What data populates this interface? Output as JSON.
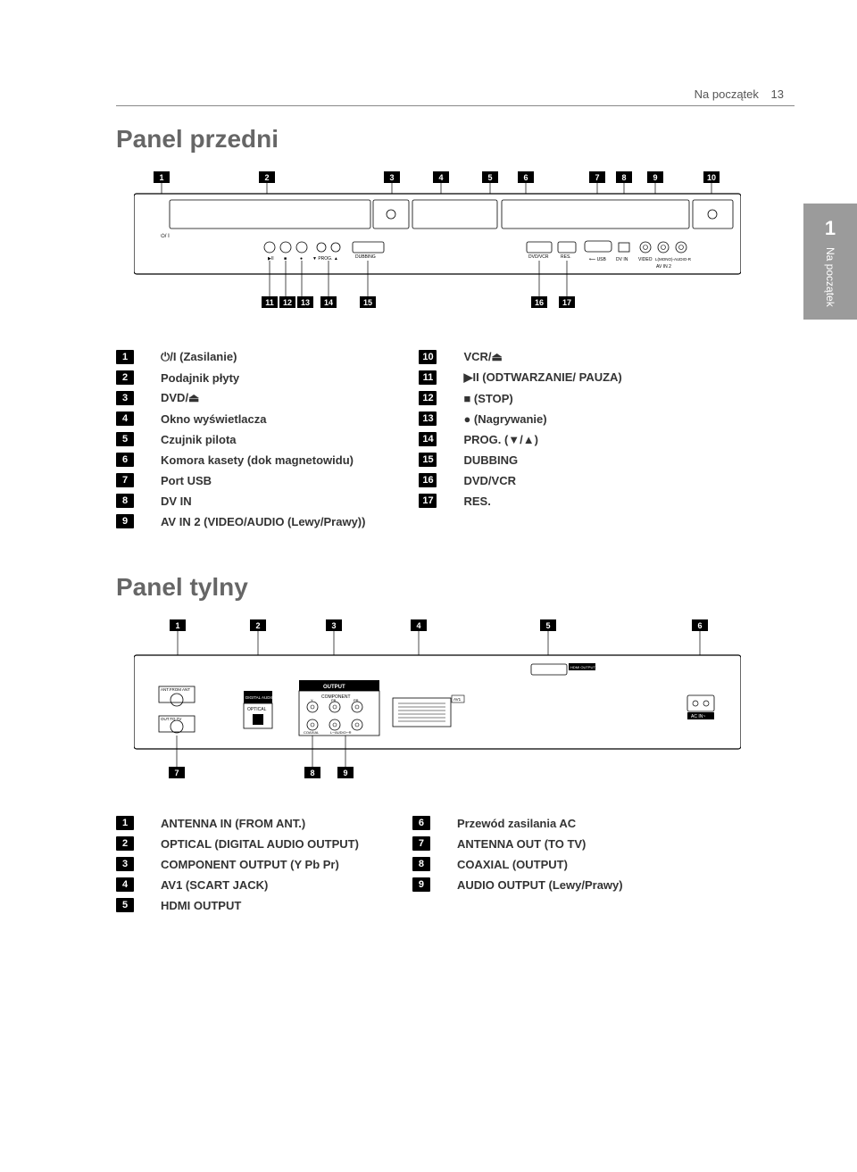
{
  "header": {
    "section_label": "Na początek",
    "page_number": "13"
  },
  "side_tab": {
    "number": "1",
    "label": "Na początek"
  },
  "front": {
    "title": "Panel przedni",
    "top_markers": [
      "1",
      "2",
      "3",
      "4",
      "5",
      "6",
      "7",
      "8",
      "9",
      "10"
    ],
    "bottom_markers": [
      "11",
      "12",
      "13",
      "14",
      "15",
      "16",
      "17"
    ],
    "legend_left": [
      {
        "n": "1",
        "t": "⏻/I (Zasilanie)"
      },
      {
        "n": "2",
        "t": "Podajnik płyty"
      },
      {
        "n": "3",
        "t": "DVD/⏏"
      },
      {
        "n": "4",
        "t": "Okno wyświetlacza"
      },
      {
        "n": "5",
        "t": "Czujnik pilota"
      },
      {
        "n": "6",
        "t": "Komora kasety (dok magnetowidu)"
      },
      {
        "n": "7",
        "t": "Port USB"
      },
      {
        "n": "8",
        "t": "DV IN"
      },
      {
        "n": "9",
        "t": "AV IN 2 (VIDEO/AUDIO (Lewy/Prawy))"
      }
    ],
    "legend_right": [
      {
        "n": "10",
        "t": "VCR/⏏"
      },
      {
        "n": "11",
        "t": "▶II (ODTWARZANIE/ PAUZA)"
      },
      {
        "n": "12",
        "t": "■ (STOP)"
      },
      {
        "n": "13",
        "t": "● (Nagrywanie)"
      },
      {
        "n": "14",
        "t": "PROG. (▼/▲)"
      },
      {
        "n": "15",
        "t": "DUBBING"
      },
      {
        "n": "16",
        "t": "DVD/VCR"
      },
      {
        "n": "17",
        "t": "RES."
      }
    ]
  },
  "rear": {
    "title": "Panel tylny",
    "top_markers": [
      "1",
      "2",
      "3",
      "4",
      "5",
      "6"
    ],
    "bottom_markers": [
      "7",
      "8",
      "9"
    ],
    "legend_left": [
      {
        "n": "1",
        "t": "ANTENNA IN (FROM ANT.)"
      },
      {
        "n": "2",
        "t": "OPTICAL (DIGITAL AUDIO OUTPUT)"
      },
      {
        "n": "3",
        "t": "COMPONENT OUTPUT (Y Pb Pr)"
      },
      {
        "n": "4",
        "t": "AV1 (SCART JACK)"
      },
      {
        "n": "5",
        "t": "HDMI OUTPUT"
      }
    ],
    "legend_right": [
      {
        "n": "6",
        "t": "Przewód zasilania AC"
      },
      {
        "n": "7",
        "t": "ANTENNA OUT (TO TV)"
      },
      {
        "n": "8",
        "t": "COAXIAL (OUTPUT)"
      },
      {
        "n": "9",
        "t": "AUDIO OUTPUT (Lewy/Prawy)"
      }
    ]
  },
  "diagram_labels": {
    "front_usb": "USB",
    "front_dvin": "DV IN",
    "front_video": "VIDEO",
    "front_audio": "L(MONO)-AUDIO-R",
    "front_avin2": "AV IN 2",
    "front_dvdvcr": "DVD/VCR",
    "front_res": "RES.",
    "front_prog": "PROG.",
    "front_dubbing": "DUBBING",
    "front_power": "⏻/ I",
    "rear_antin": "ANT.FROM ANT",
    "rear_antout": "OUT.TO TV",
    "rear_digaudio": "DIGITAL AUDIO",
    "rear_optical": "OPTICAL",
    "rear_output": "OUTPUT",
    "rear_component": "COMPONENT",
    "rear_y": "Y",
    "rear_pb": "PB",
    "rear_pr": "PR",
    "rear_coaxial": "COAXIAL",
    "rear_audio_l": "L",
    "rear_audio_r": "R",
    "rear_audio": "AUDIO",
    "rear_av1": "AV1",
    "rear_hdmi": "HDMI OUTPUT",
    "rear_acin": "AC IN~"
  }
}
